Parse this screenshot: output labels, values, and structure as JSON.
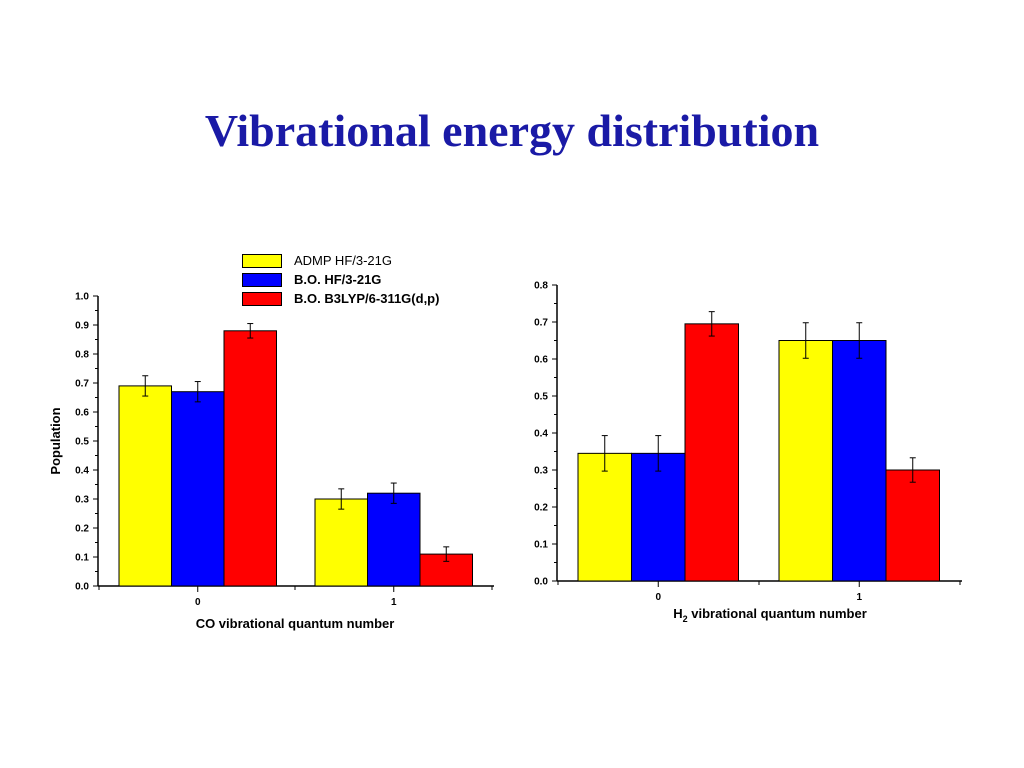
{
  "slide": {
    "title": "Vibrational energy distribution"
  },
  "legend": {
    "placement": "top-center",
    "entries": [
      {
        "name": "ADMP HF/3-21G",
        "color": "#ffff00",
        "bold": false
      },
      {
        "name": "B.O. HF/3-21G",
        "color": "#0000ff",
        "bold": true
      },
      {
        "name": "B.O. B3LYP/6-311G(d,p)",
        "color": "#ff0000",
        "bold": true
      }
    ]
  },
  "chart_data": [
    {
      "type": "bar",
      "title": "",
      "xlabel": "CO vibrational quantum number",
      "ylabel": "Population",
      "ylim": [
        0,
        1.0
      ],
      "yticks": [
        "0.0",
        "0.1",
        "0.2",
        "0.3",
        "0.4",
        "0.5",
        "0.6",
        "0.7",
        "0.8",
        "0.9",
        "1.0"
      ],
      "categories": [
        "0",
        "1"
      ],
      "grid": false,
      "series": [
        {
          "name": "ADMP HF/3-21G",
          "color": "#ffff00",
          "values": [
            0.69,
            0.3
          ],
          "errors": [
            0.035,
            0.035
          ]
        },
        {
          "name": "B.O. HF/3-21G",
          "color": "#0000ff",
          "values": [
            0.67,
            0.32
          ],
          "errors": [
            0.035,
            0.035
          ]
        },
        {
          "name": "B.O. B3LYP/6-311G(d,p)",
          "color": "#ff0000",
          "values": [
            0.88,
            0.11
          ],
          "errors": [
            0.025,
            0.025
          ]
        }
      ]
    },
    {
      "type": "bar",
      "title": "",
      "xlabel": "H2 vibrational quantum number",
      "xlabel_parts": {
        "main": "H",
        "sub": "2",
        "rest": " vibrational quantum number"
      },
      "ylabel": "",
      "ylim": [
        0,
        0.8
      ],
      "yticks": [
        "0.0",
        "0.1",
        "0.2",
        "0.3",
        "0.4",
        "0.5",
        "0.6",
        "0.7",
        "0.8"
      ],
      "categories": [
        "0",
        "1"
      ],
      "grid": false,
      "series": [
        {
          "name": "ADMP HF/3-21G",
          "color": "#ffff00",
          "values": [
            0.345,
            0.65
          ],
          "errors": [
            0.048,
            0.048
          ]
        },
        {
          "name": "B.O. HF/3-21G",
          "color": "#0000ff",
          "values": [
            0.345,
            0.65
          ],
          "errors": [
            0.048,
            0.048
          ]
        },
        {
          "name": "B.O. B3LYP/6-311G(d,p)",
          "color": "#ff0000",
          "values": [
            0.695,
            0.3
          ],
          "errors": [
            0.033,
            0.033
          ]
        }
      ]
    }
  ]
}
